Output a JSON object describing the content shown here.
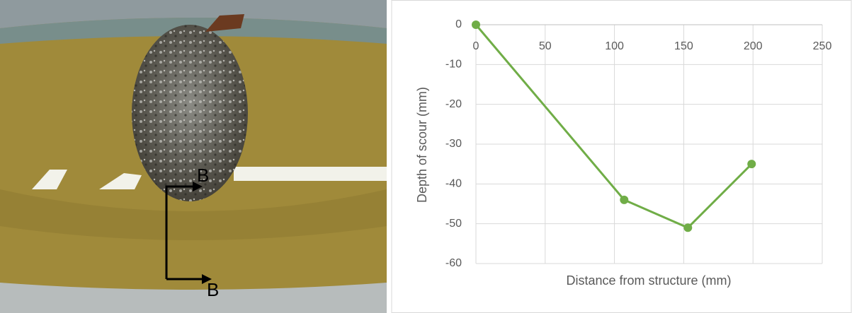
{
  "photo_labels": [
    "B",
    "B"
  ],
  "chart_data": {
    "type": "line",
    "x_label": "Distance from structure (mm)",
    "y_label": "Depth of scour  (mm)",
    "xlim": [
      0,
      250
    ],
    "xticks": [
      0,
      50,
      100,
      150,
      200,
      250
    ],
    "ylim": [
      -60,
      0
    ],
    "yticks": [
      0,
      -10,
      -20,
      -30,
      -40,
      -50,
      -60
    ],
    "grid": true,
    "series": [
      {
        "name": "Depth of scour",
        "color": "#70ad47",
        "x": [
          0,
          107,
          153,
          199
        ],
        "values": [
          0,
          -44,
          -51,
          -35
        ]
      }
    ]
  }
}
